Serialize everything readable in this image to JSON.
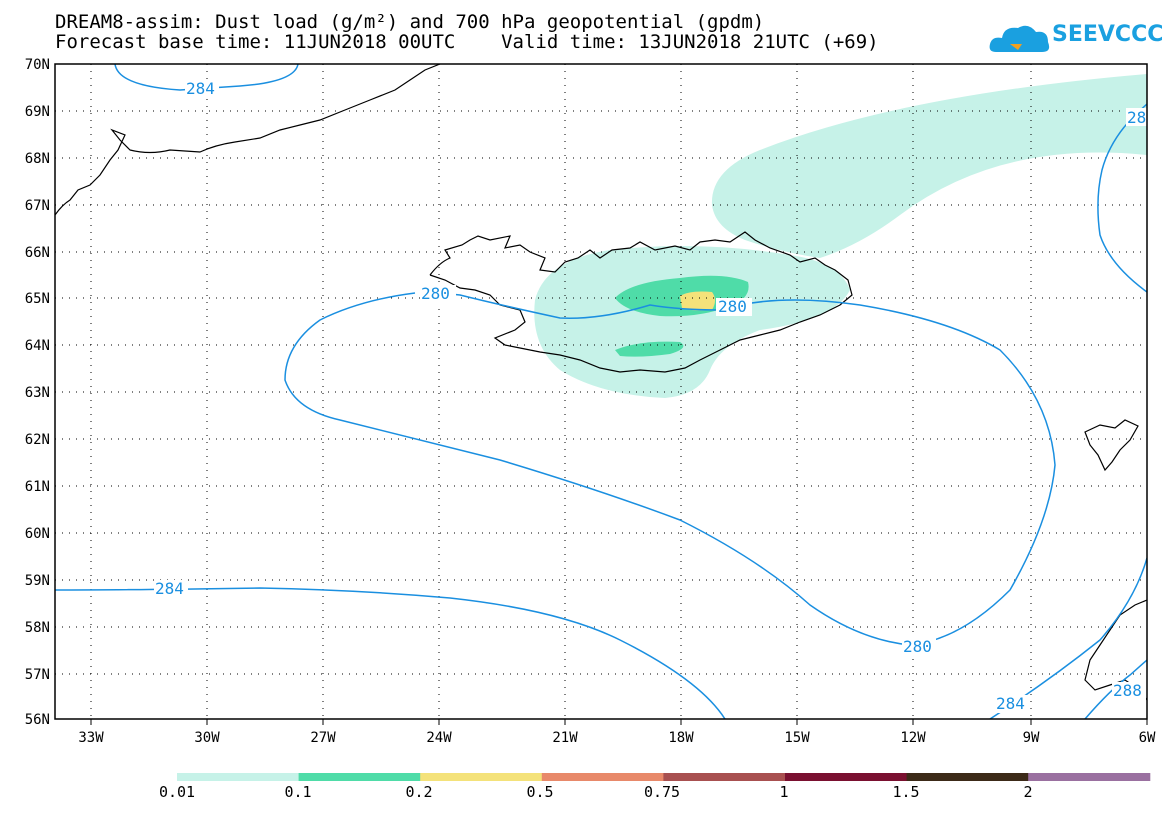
{
  "title_line1": "DREAM8-assim: Dust load (g/m²) and 700 hPa geopotential (gpdm)",
  "title_line2": "Forecast base time: 11JUN2018 00UTC    Valid time: 13JUN2018 21UTC (+69)",
  "logo_text": "SEEVCCC",
  "lat_labels": [
    "70N",
    "69N",
    "68N",
    "67N",
    "66N",
    "65N",
    "64N",
    "63N",
    "62N",
    "61N",
    "60N",
    "59N",
    "58N",
    "57N",
    "56N"
  ],
  "lon_labels": [
    "33W",
    "30W",
    "27W",
    "24W",
    "21W",
    "18W",
    "15W",
    "12W",
    "9W",
    "6W"
  ],
  "contour_labels": {
    "c284_top": "284",
    "c280_west": "280",
    "c280_east": "280",
    "c284_south": "284",
    "c280_south": "280",
    "c284_se": "284",
    "c288_se": "288",
    "c28_ne": "28"
  },
  "legend": {
    "labels": [
      "0.01",
      "0.1",
      "0.2",
      "0.5",
      "0.75",
      "1",
      "1.5",
      "2"
    ],
    "colors": [
      "#c6f2e8",
      "#4fdca8",
      "#f4e27a",
      "#e8896a",
      "#a85050",
      "#7a1030",
      "#3c2a18",
      "#9a70a0"
    ]
  },
  "contour_color": "#1a8fe0"
}
